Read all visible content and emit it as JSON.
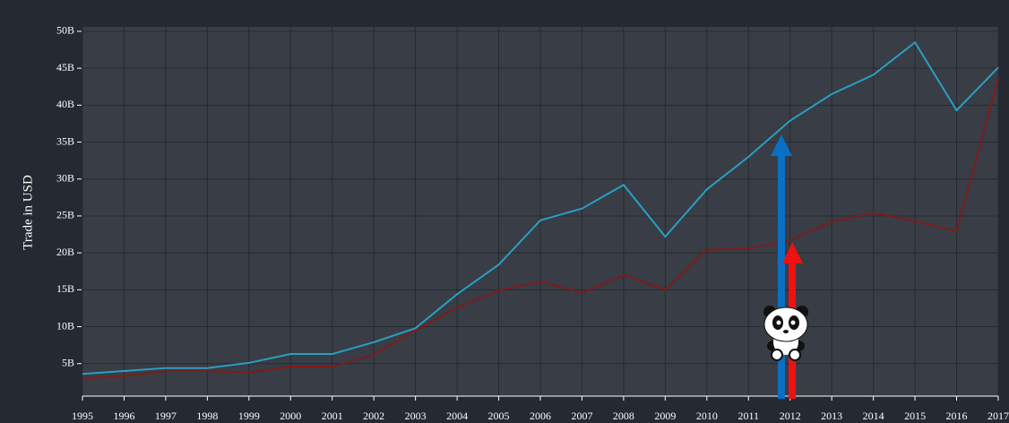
{
  "chart_data": {
    "type": "line",
    "y_label": "Trade in USD",
    "x": [
      1995,
      1996,
      1997,
      1998,
      1999,
      2000,
      2001,
      2002,
      2003,
      2004,
      2005,
      2006,
      2007,
      2008,
      2009,
      2010,
      2011,
      2012,
      2013,
      2014,
      2015,
      2016,
      2017
    ],
    "series": [
      {
        "color": "#2a9ec4",
        "values": [
          3.6,
          4.0,
          4.4,
          4.4,
          5.1,
          6.3,
          6.3,
          7.9,
          9.8,
          14.4,
          18.4,
          24.4,
          26.0,
          29.2,
          22.2,
          28.6,
          33.0,
          37.9,
          41.5,
          44.1,
          48.5,
          39.3,
          45.1
        ]
      },
      {
        "color": "#7d1c1c",
        "values": [
          3.0,
          3.3,
          4.0,
          4.0,
          3.8,
          4.6,
          4.6,
          6.2,
          9.5,
          12.6,
          14.9,
          16.1,
          14.6,
          17.0,
          15.0,
          20.4,
          20.6,
          21.7,
          24.2,
          25.4,
          24.3,
          22.9,
          43.6
        ]
      }
    ],
    "xlim": [
      1995,
      2017
    ],
    "xticks": [
      1995,
      1996,
      1997,
      1998,
      1999,
      2000,
      2001,
      2002,
      2003,
      2004,
      2005,
      2006,
      2007,
      2008,
      2009,
      2010,
      2011,
      2012,
      2013,
      2014,
      2015,
      2016,
      2017
    ],
    "ylim": [
      0.6,
      50.6
    ],
    "yticks": [
      {
        "value": 5,
        "label": "5B"
      },
      {
        "value": 10,
        "label": "10B"
      },
      {
        "value": 15,
        "label": "15B"
      },
      {
        "value": 20,
        "label": "20B"
      },
      {
        "value": 25,
        "label": "25B"
      },
      {
        "value": 30,
        "label": "30B"
      },
      {
        "value": 35,
        "label": "35B"
      },
      {
        "value": 40,
        "label": "40B"
      },
      {
        "value": 45,
        "label": "45B"
      },
      {
        "value": 50,
        "label": "50B"
      }
    ],
    "grid": true
  }
}
